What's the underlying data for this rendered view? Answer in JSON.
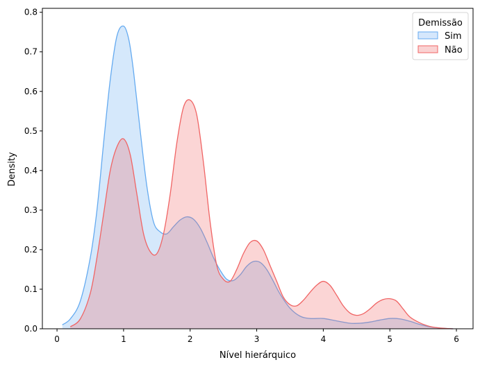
{
  "chart_data": {
    "type": "area",
    "title": "",
    "xlabel": "Nível hierárquico",
    "ylabel": "Density",
    "xlim": [
      -0.22,
      6.25
    ],
    "ylim": [
      0,
      0.81
    ],
    "xticks": [
      0,
      1,
      2,
      3,
      4,
      5,
      6
    ],
    "yticks": [
      0.0,
      0.1,
      0.2,
      0.3,
      0.4,
      0.5,
      0.6,
      0.7,
      0.8
    ],
    "grid": false,
    "legend": {
      "title": "Demissão",
      "placement": "top-right"
    },
    "series": [
      {
        "name": "Sim",
        "color": "#64aaf0",
        "fill": "#d5e7fc",
        "x": [
          0.08,
          0.2,
          0.35,
          0.5,
          0.6,
          0.7,
          0.8,
          0.9,
          1.0,
          1.08,
          1.15,
          1.25,
          1.35,
          1.45,
          1.55,
          1.65,
          1.75,
          1.85,
          1.95,
          2.05,
          2.15,
          2.25,
          2.35,
          2.45,
          2.55,
          2.65,
          2.75,
          2.85,
          2.95,
          3.05,
          3.15,
          3.25,
          3.35,
          3.5,
          3.65,
          3.8,
          4.0,
          4.2,
          4.4,
          4.55,
          4.7,
          4.85,
          5.0,
          5.15,
          5.3,
          5.45,
          5.6,
          5.75,
          5.95
        ],
        "y": [
          0.01,
          0.025,
          0.07,
          0.18,
          0.3,
          0.47,
          0.63,
          0.74,
          0.765,
          0.73,
          0.65,
          0.5,
          0.36,
          0.27,
          0.245,
          0.24,
          0.258,
          0.275,
          0.283,
          0.277,
          0.255,
          0.22,
          0.18,
          0.148,
          0.125,
          0.122,
          0.136,
          0.158,
          0.17,
          0.168,
          0.15,
          0.12,
          0.088,
          0.052,
          0.032,
          0.026,
          0.026,
          0.02,
          0.014,
          0.014,
          0.017,
          0.022,
          0.026,
          0.025,
          0.019,
          0.011,
          0.005,
          0.002,
          0.0
        ]
      },
      {
        "name": "Não",
        "color": "#f06464",
        "fill": "#fad2d2",
        "x": [
          0.2,
          0.35,
          0.5,
          0.6,
          0.7,
          0.8,
          0.9,
          1.0,
          1.1,
          1.2,
          1.3,
          1.4,
          1.5,
          1.6,
          1.7,
          1.8,
          1.9,
          2.0,
          2.1,
          2.2,
          2.3,
          2.4,
          2.5,
          2.6,
          2.7,
          2.8,
          2.9,
          3.0,
          3.1,
          3.2,
          3.3,
          3.4,
          3.5,
          3.6,
          3.7,
          3.8,
          3.9,
          4.0,
          4.1,
          4.2,
          4.3,
          4.4,
          4.5,
          4.6,
          4.7,
          4.8,
          4.9,
          5.0,
          5.1,
          5.2,
          5.3,
          5.45,
          5.6,
          5.75,
          5.95
        ],
        "y": [
          0.005,
          0.025,
          0.09,
          0.18,
          0.29,
          0.4,
          0.46,
          0.48,
          0.44,
          0.34,
          0.24,
          0.195,
          0.19,
          0.24,
          0.34,
          0.47,
          0.56,
          0.578,
          0.54,
          0.42,
          0.27,
          0.16,
          0.125,
          0.12,
          0.15,
          0.19,
          0.218,
          0.222,
          0.2,
          0.16,
          0.12,
          0.08,
          0.061,
          0.058,
          0.072,
          0.092,
          0.11,
          0.12,
          0.11,
          0.085,
          0.058,
          0.04,
          0.034,
          0.038,
          0.05,
          0.065,
          0.074,
          0.076,
          0.07,
          0.05,
          0.03,
          0.015,
          0.006,
          0.002,
          0.0
        ]
      }
    ]
  }
}
